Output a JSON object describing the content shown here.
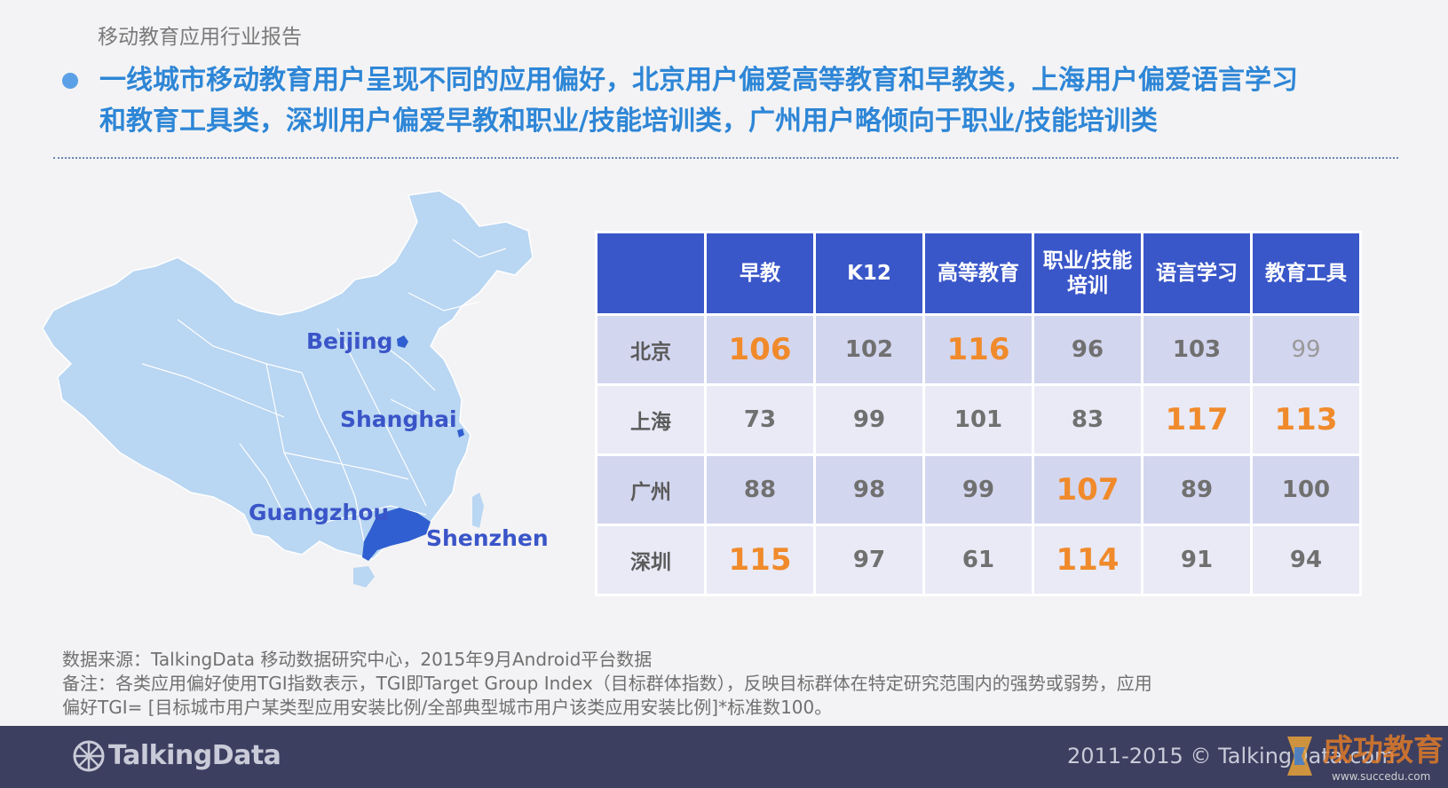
{
  "header": {
    "report_label": "移动教育应用行业报告",
    "headline_line1": "一线城市移动教育用户呈现不同的应用偏好，北京用户偏爱高等教育和早教类，上海用户偏爱语言学习",
    "headline_line2": "和教育工具类，深圳用户偏爱早教和职业/技能培训类，广州用户略倾向于职业/技能培训类"
  },
  "map": {
    "labels": {
      "beijing": "Beijing",
      "shanghai": "Shanghai",
      "guangzhou": "Guangzhou",
      "shenzhen": "Shenzhen"
    },
    "colors": {
      "land": "#b9d6f2",
      "highlight": "#2f5fd0",
      "border": "#ffffff"
    }
  },
  "table": {
    "columns": [
      "早教",
      "K12",
      "高等教育",
      "职业/技能培训",
      "语言学习",
      "教育工具"
    ],
    "column_line1": [
      "早教",
      "K12",
      "高等教育",
      "职业/技能",
      "语言学习",
      "教育工具"
    ],
    "column_line2": [
      "",
      "",
      "",
      "培训",
      "",
      ""
    ],
    "rows": [
      {
        "city": "北京",
        "values": [
          "106",
          "102",
          "116",
          "96",
          "103",
          "99"
        ]
      },
      {
        "city": "上海",
        "values": [
          "73",
          "99",
          "101",
          "83",
          "117",
          "113"
        ]
      },
      {
        "city": "广州",
        "values": [
          "88",
          "98",
          "99",
          "107",
          "89",
          "100"
        ]
      },
      {
        "city": "深圳",
        "values": [
          "115",
          "97",
          "61",
          "114",
          "91",
          "94"
        ]
      }
    ],
    "colors": {
      "header": "#3a57c9",
      "highlight_text": "#f08a2b",
      "row_dark": "#d3d6ef",
      "row_light": "#e9eaf6"
    }
  },
  "notes": {
    "source": "数据来源：TalkingData 移动数据研究中心，2015年9月Android平台数据",
    "remark_line1": "备注：各类应用偏好使用TGI指数表示，TGI即Target Group Index（目标群体指数），反映目标群体在特定研究范围内的强势或弱势，应用",
    "remark_line2": "偏好TGI= [目标城市用户某类型应用安装比例/全部典型城市用户该类应用安装比例]*标准数100。"
  },
  "footer": {
    "brand": "TalkingData",
    "copyright": "2011-2015 © TalkingData.com",
    "watermark_text": "成功教育",
    "watermark_url": "www.succedu.com"
  }
}
